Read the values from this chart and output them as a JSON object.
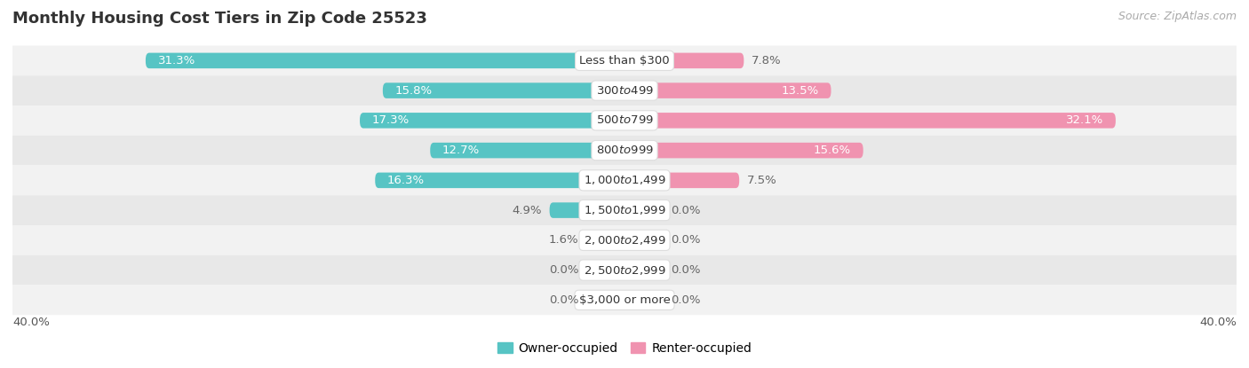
{
  "title": "Monthly Housing Cost Tiers in Zip Code 25523",
  "source": "Source: ZipAtlas.com",
  "categories": [
    "Less than $300",
    "$300 to $499",
    "$500 to $799",
    "$800 to $999",
    "$1,000 to $1,499",
    "$1,500 to $1,999",
    "$2,000 to $2,499",
    "$2,500 to $2,999",
    "$3,000 or more"
  ],
  "owner_values": [
    31.3,
    15.8,
    17.3,
    12.7,
    16.3,
    4.9,
    1.6,
    0.0,
    0.0
  ],
  "renter_values": [
    7.8,
    13.5,
    32.1,
    15.6,
    7.5,
    0.0,
    0.0,
    0.0,
    0.0
  ],
  "owner_color": "#57C4C4",
  "renter_color": "#F093B0",
  "row_bg_colors": [
    "#f2f2f2",
    "#e8e8e8"
  ],
  "axis_limit": 40.0,
  "bar_height": 0.52,
  "title_fontsize": 13,
  "label_fontsize": 9.5,
  "category_fontsize": 9.5,
  "legend_fontsize": 10,
  "source_fontsize": 9,
  "min_stub": 2.5
}
